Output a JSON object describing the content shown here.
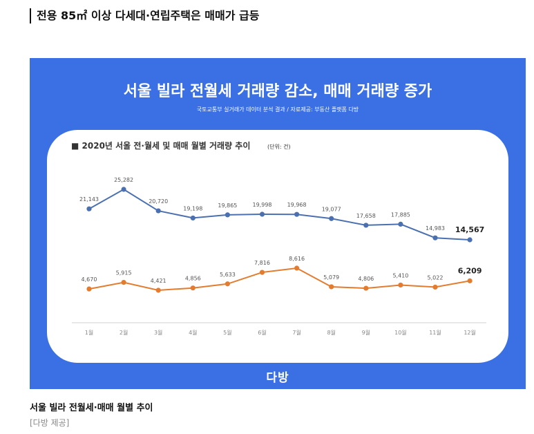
{
  "article": {
    "headline": "전용 85㎡ 이상 다세대·연립주택은 매매가 급등",
    "caption": "서울 빌라 전월세·매매 월별 추이",
    "credit": "[다방 제공]"
  },
  "infographic": {
    "title": "서울 빌라 전월세 거래량 감소, 매매 거래량 증가",
    "subtitle": "국토교통부 실거래가 데이터 분석 결과 / 자료제공: 부동산 플랫폼 다방",
    "logo": "다방",
    "background_color": "#3a70e3"
  },
  "chart_data": {
    "type": "line",
    "title": "■ 2020년 서울 전·월세 및 매매 월별 거래량 추이",
    "unit": "(단위: 건)",
    "categories": [
      "1월",
      "2월",
      "3월",
      "4월",
      "5월",
      "6월",
      "7월",
      "8월",
      "9월",
      "10월",
      "11월",
      "12월"
    ],
    "series": [
      {
        "name": "전월세",
        "color": "#4a70b0",
        "values": [
          21143,
          25282,
          20720,
          19198,
          19865,
          19998,
          19968,
          19077,
          17658,
          17885,
          14983,
          14567
        ],
        "labels": [
          "21,143",
          "25,282",
          "20,720",
          "19,198",
          "19,865",
          "19,998",
          "19,968",
          "19,077",
          "17,658",
          "17,885",
          "14,983",
          "14,567"
        ]
      },
      {
        "name": "매매",
        "color": "#e37c2e",
        "values": [
          4670,
          5915,
          4421,
          4856,
          5633,
          7816,
          8616,
          5079,
          4806,
          5410,
          5022,
          6209
        ],
        "labels": [
          "4,670",
          "5,915",
          "4,421",
          "4,856",
          "5,633",
          "7,816",
          "8,616",
          "5,079",
          "4,806",
          "5,410",
          "5,022",
          "6,209"
        ]
      }
    ],
    "legend_position": "bottom-center",
    "grid": false
  }
}
